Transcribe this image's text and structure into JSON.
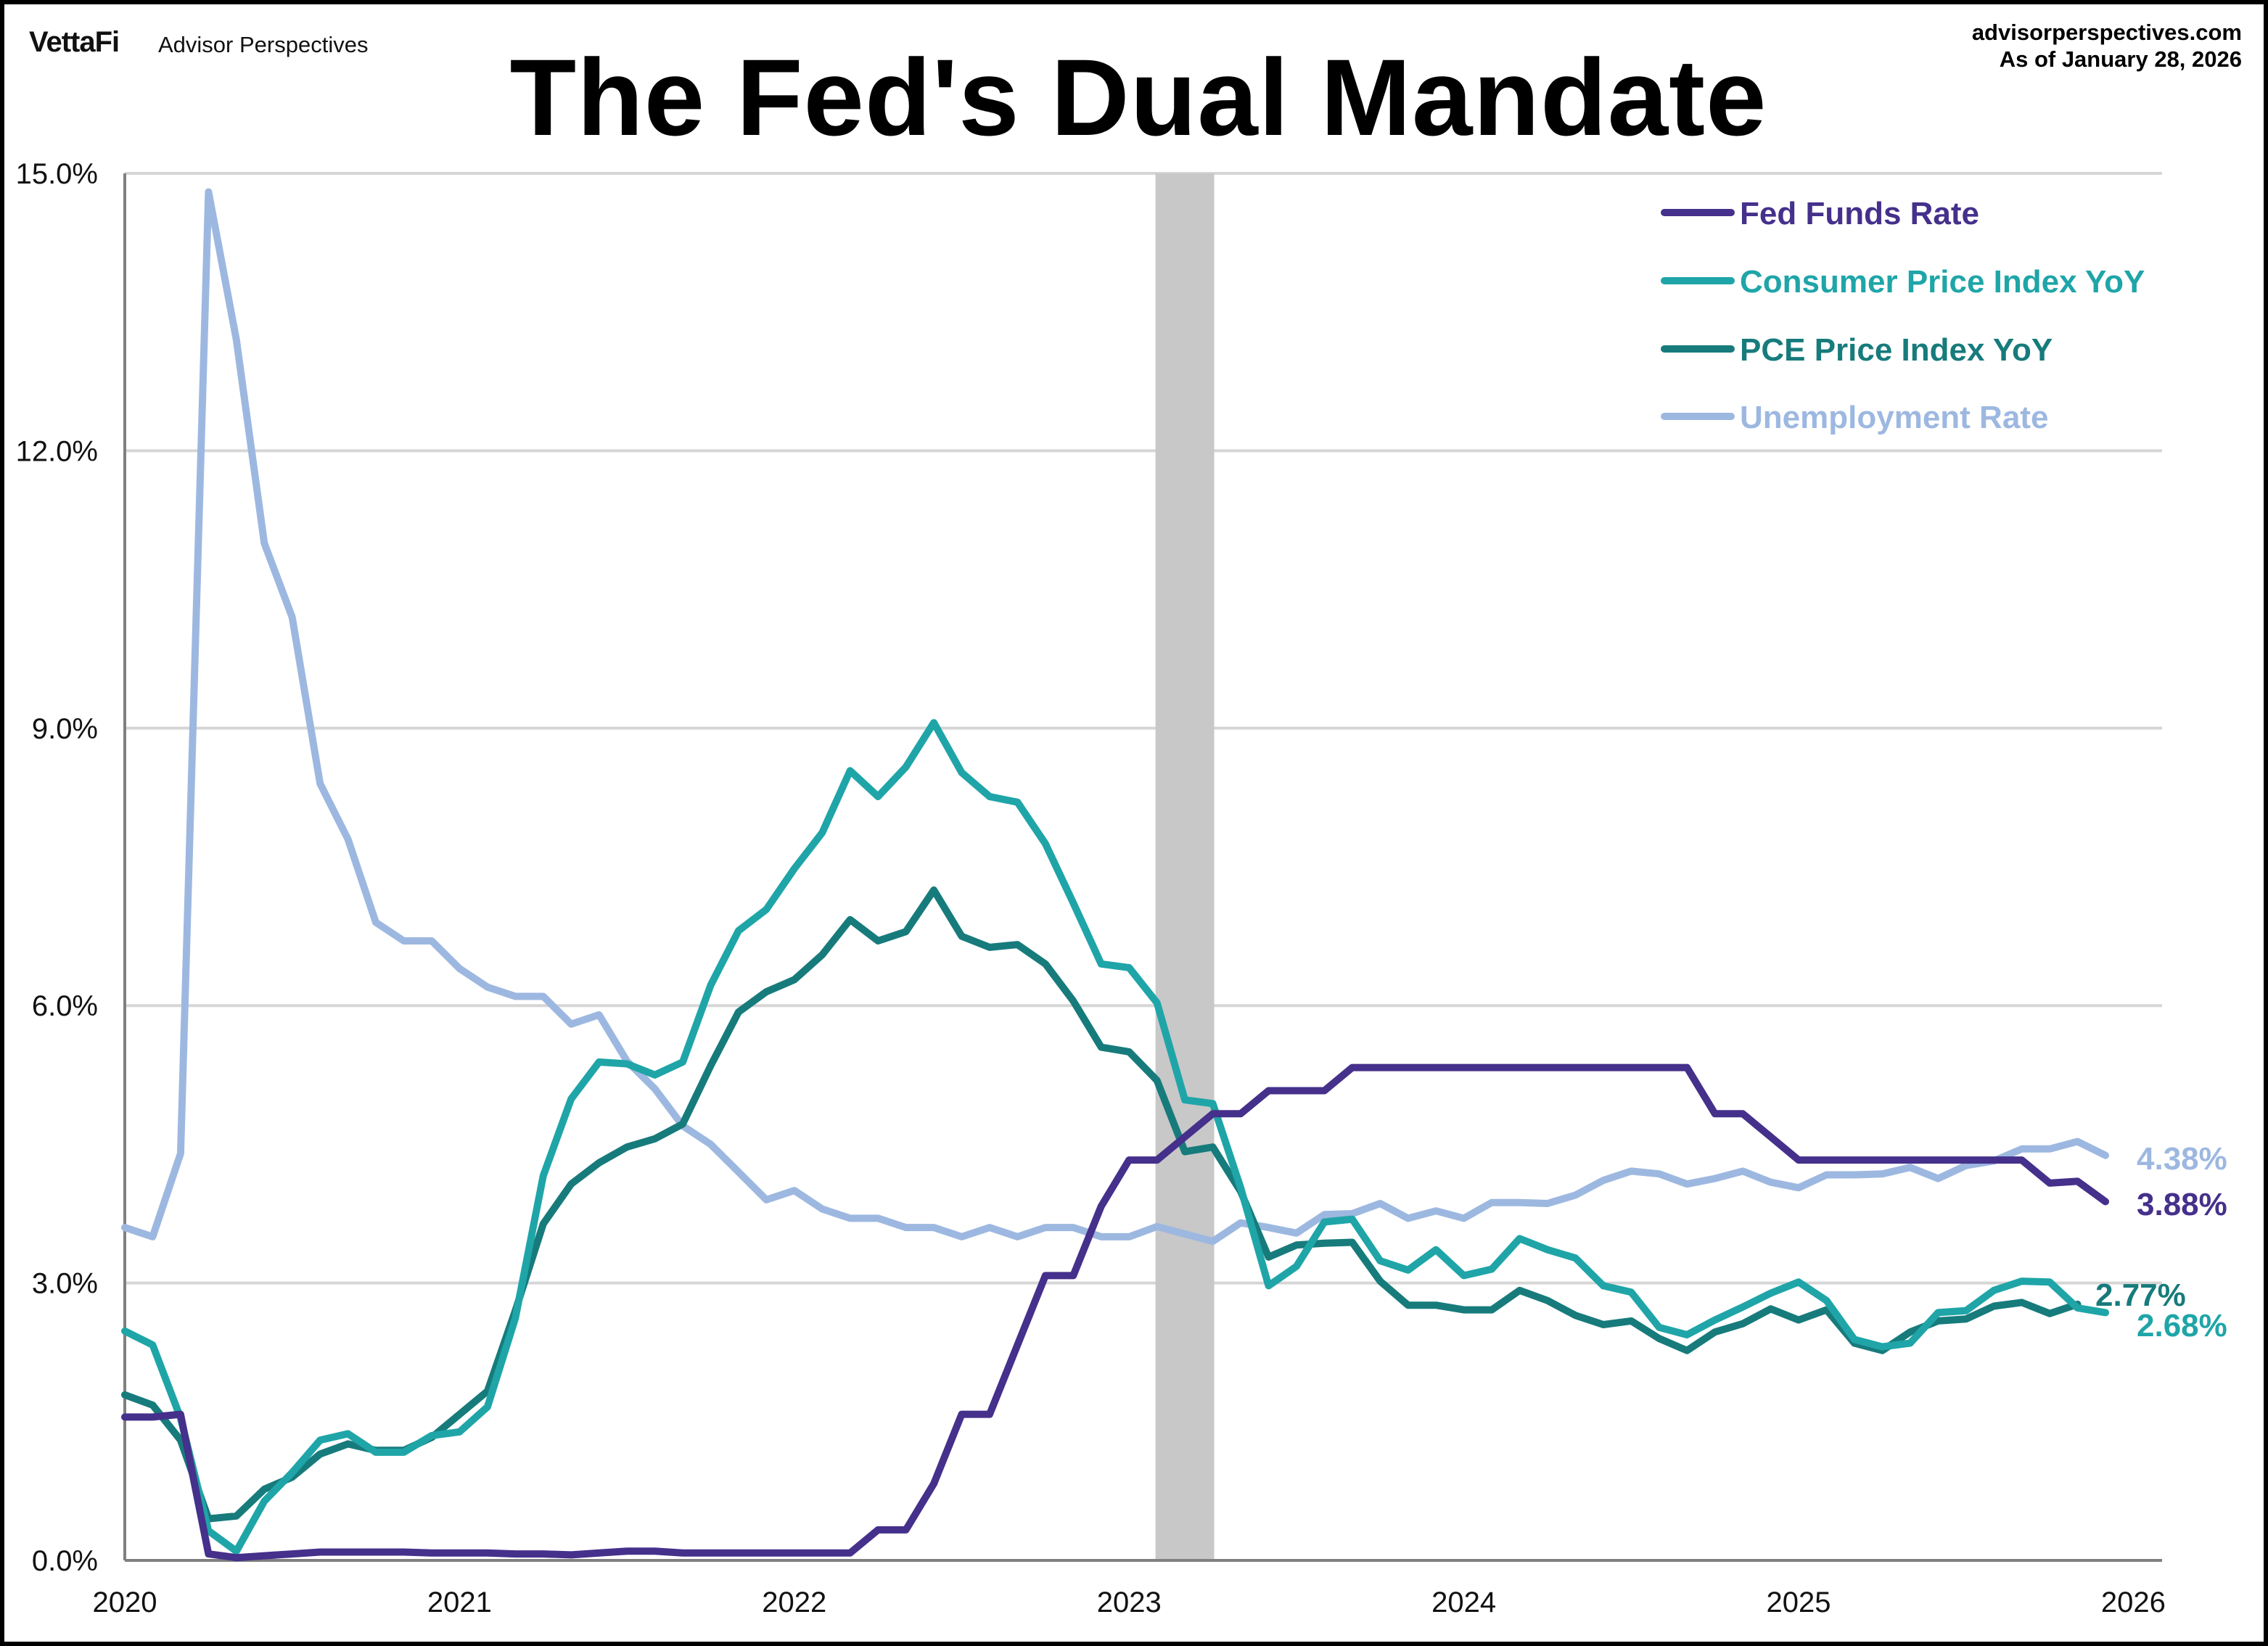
{
  "header": {
    "logo": "VettaFi",
    "brand": "Advisor Perspectives",
    "site": "advisorperspectives.com",
    "as_of": "As of January 28, 2026"
  },
  "chart_data": {
    "type": "line",
    "title": "The Fed's Dual Mandate",
    "xlabel": "",
    "ylabel": "",
    "x_start": "2020-01",
    "x_frequency": "monthly",
    "xlim_months": [
      0,
      73
    ],
    "x_ticks": [
      {
        "label": "2020",
        "month_index": 0
      },
      {
        "label": "2021",
        "month_index": 12
      },
      {
        "label": "2022",
        "month_index": 24
      },
      {
        "label": "2023",
        "month_index": 36
      },
      {
        "label": "2024",
        "month_index": 48
      },
      {
        "label": "2025",
        "month_index": 60
      },
      {
        "label": "2026",
        "month_index": 72
      }
    ],
    "ylim": [
      0,
      15
    ],
    "y_ticks": [
      {
        "label": "0.0%",
        "value": 0
      },
      {
        "label": "3.0%",
        "value": 3
      },
      {
        "label": "6.0%",
        "value": 6
      },
      {
        "label": "9.0%",
        "value": 9
      },
      {
        "label": "12.0%",
        "value": 12
      },
      {
        "label": "15.0%",
        "value": 15
      }
    ],
    "grid": "horizontal",
    "legend_position": "top-right",
    "shaded_period": {
      "start_month_index": 37,
      "end_month_index": 39,
      "color": "#c8c8c8"
    },
    "series": [
      {
        "name": "Fed Funds Rate",
        "color": "#45308b",
        "end_label": "3.88%",
        "values": [
          1.55,
          1.55,
          1.58,
          0.07,
          0.03,
          0.05,
          0.07,
          0.09,
          0.09,
          0.09,
          0.09,
          0.08,
          0.08,
          0.08,
          0.07,
          0.07,
          0.06,
          0.08,
          0.1,
          0.1,
          0.08,
          0.08,
          0.08,
          0.08,
          0.08,
          0.08,
          0.08,
          0.33,
          0.33,
          0.83,
          1.58,
          1.58,
          2.33,
          3.08,
          3.08,
          3.83,
          4.33,
          4.33,
          4.58,
          4.83,
          4.83,
          5.08,
          5.08,
          5.08,
          5.33,
          5.33,
          5.33,
          5.33,
          5.33,
          5.33,
          5.33,
          5.33,
          5.33,
          5.33,
          5.33,
          5.33,
          5.33,
          4.83,
          4.83,
          4.58,
          4.33,
          4.33,
          4.33,
          4.33,
          4.33,
          4.33,
          4.33,
          4.33,
          4.33,
          4.08,
          4.1,
          3.88
        ]
      },
      {
        "name": "Consumer Price Index YoY",
        "color": "#1fa5a8",
        "end_label": "2.68%",
        "values": [
          2.48,
          2.33,
          1.54,
          0.32,
          0.1,
          0.64,
          0.95,
          1.3,
          1.37,
          1.17,
          1.17,
          1.35,
          1.39,
          1.66,
          2.62,
          4.16,
          4.99,
          5.39,
          5.37,
          5.25,
          5.39,
          6.22,
          6.81,
          7.04,
          7.48,
          7.87,
          8.54,
          8.26,
          8.58,
          9.06,
          8.52,
          8.26,
          8.2,
          7.75,
          7.11,
          6.45,
          6.41,
          6.03,
          4.98,
          4.94,
          4.03,
          2.97,
          3.18,
          3.66,
          3.69,
          3.24,
          3.14,
          3.36,
          3.08,
          3.15,
          3.48,
          3.36,
          3.27,
          2.97,
          2.9,
          2.52,
          2.44,
          2.6,
          2.74,
          2.89,
          3.01,
          2.81,
          2.39,
          2.31,
          2.35,
          2.68,
          2.7,
          2.92,
          3.02,
          3.01,
          2.73,
          2.68
        ]
      },
      {
        "name": "PCE Price Index YoY",
        "color": "#177b7c",
        "end_label": "2.77%",
        "values": [
          1.79,
          1.68,
          1.3,
          0.45,
          0.48,
          0.77,
          0.9,
          1.15,
          1.26,
          1.19,
          1.19,
          1.33,
          1.58,
          1.83,
          2.7,
          3.64,
          4.07,
          4.3,
          4.47,
          4.56,
          4.72,
          5.35,
          5.93,
          6.15,
          6.28,
          6.55,
          6.93,
          6.7,
          6.8,
          7.25,
          6.75,
          6.63,
          6.66,
          6.45,
          6.05,
          5.55,
          5.5,
          5.19,
          4.42,
          4.47,
          3.99,
          3.28,
          3.41,
          3.43,
          3.44,
          3.02,
          2.76,
          2.76,
          2.71,
          2.71,
          2.92,
          2.81,
          2.65,
          2.55,
          2.59,
          2.4,
          2.27,
          2.47,
          2.56,
          2.72,
          2.6,
          2.71,
          2.35,
          2.27,
          2.47,
          2.59,
          2.61,
          2.75,
          2.79,
          2.67,
          2.77
        ]
      },
      {
        "name": "Unemployment Rate",
        "color": "#9db8e0",
        "end_label": "4.38%",
        "values": [
          3.6,
          3.5,
          4.4,
          14.8,
          13.2,
          11.0,
          10.2,
          8.4,
          7.8,
          6.9,
          6.7,
          6.7,
          6.4,
          6.2,
          6.1,
          6.1,
          5.8,
          5.9,
          5.4,
          5.1,
          4.7,
          4.5,
          4.2,
          3.9,
          4.0,
          3.8,
          3.7,
          3.7,
          3.6,
          3.6,
          3.5,
          3.6,
          3.5,
          3.6,
          3.6,
          3.5,
          3.5,
          3.61,
          3.53,
          3.45,
          3.65,
          3.6,
          3.54,
          3.74,
          3.75,
          3.86,
          3.7,
          3.78,
          3.7,
          3.87,
          3.87,
          3.86,
          3.95,
          4.11,
          4.21,
          4.18,
          4.07,
          4.13,
          4.21,
          4.09,
          4.03,
          4.17,
          4.17,
          4.18,
          4.25,
          4.13,
          4.27,
          4.32,
          4.45,
          4.45,
          4.53,
          4.38
        ]
      }
    ]
  }
}
